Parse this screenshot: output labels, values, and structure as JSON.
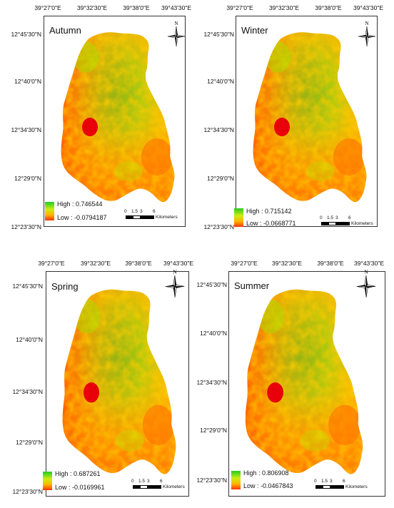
{
  "lon_labels": [
    "39°27'0\"E",
    "39°32'30\"E",
    "39°38'0\"E",
    "39°43'30\"E"
  ],
  "lat_labels": [
    "12°45'30\"N",
    "12°40'0\"N",
    "12°34'30\"N",
    "12°29'0\"N",
    "12°23'30\"N"
  ],
  "north_label": "N",
  "scale": {
    "ticks": [
      "0",
      "1.5",
      "3",
      "6"
    ],
    "unit": "Kilometers"
  },
  "panels": [
    {
      "season": "Autumn",
      "high": "High : 0.746544",
      "low": "Low : -0.0794187"
    },
    {
      "season": "Winter",
      "high": "High : 0.715142",
      "low": "Low : -0.0668771"
    },
    {
      "season": "Spring",
      "high": "High : 0.687261",
      "low": "Low : -0.0169961"
    },
    {
      "season": "Summer",
      "high": "High : 0.806908",
      "low": "Low : -0.0467843"
    }
  ],
  "colors": {
    "high": "#22cc22",
    "mid": "#ccee11",
    "low": "#ff3300",
    "lake": "#e8000a"
  }
}
